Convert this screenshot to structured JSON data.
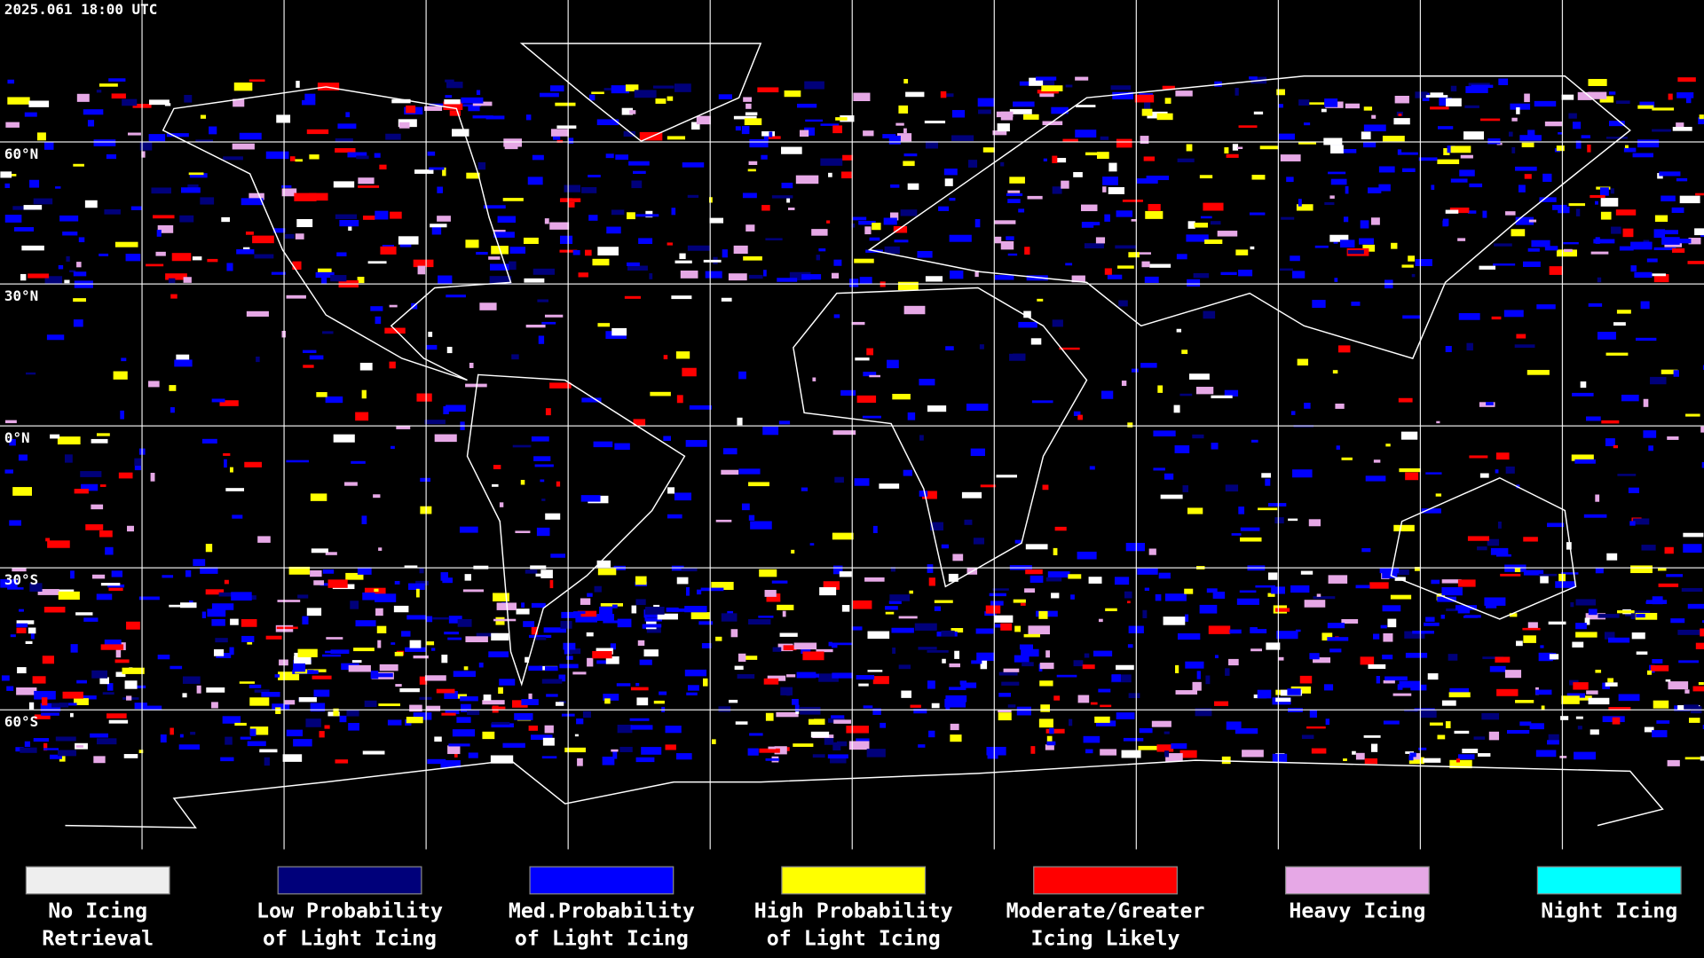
{
  "header": {
    "timestamp": "2025.061 18:00 UTC"
  },
  "map": {
    "lat_labels": [
      "60°N",
      "30°N",
      "0°N",
      "30°S",
      "60°S"
    ]
  },
  "legend": [
    {
      "lines": [
        "No Icing",
        "Retrieval"
      ],
      "color": "#eeeeee"
    },
    {
      "lines": [
        "Low Probability",
        "of Light Icing"
      ],
      "color": "#00007a"
    },
    {
      "lines": [
        "Med.Probability",
        "of Light Icing"
      ],
      "color": "#0000ff"
    },
    {
      "lines": [
        "High Probability",
        "of Light Icing"
      ],
      "color": "#ffff00"
    },
    {
      "lines": [
        "Moderate/Greater",
        "Icing Likely"
      ],
      "color": "#ff0000"
    },
    {
      "lines": [
        "Heavy Icing"
      ],
      "color": "#e6a8e6"
    },
    {
      "lines": [
        "Night Icing"
      ],
      "color": "#00ffff"
    }
  ]
}
